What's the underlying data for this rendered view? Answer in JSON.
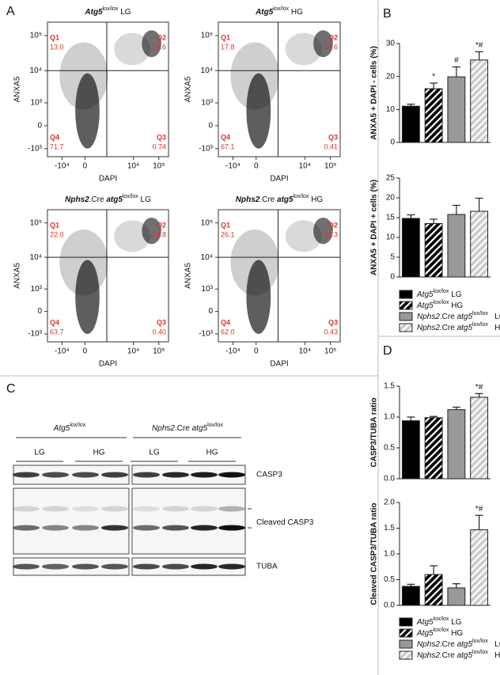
{
  "panel_labels": [
    "A",
    "B",
    "C",
    "D"
  ],
  "flow": {
    "x_label": "DAPI",
    "y_label": "ANXA5",
    "xticks": [
      "-10⁴",
      "0",
      "10⁴",
      "10⁵"
    ],
    "yticks": [
      "10⁵",
      "10⁴",
      "10³",
      "0",
      "-10³"
    ],
    "plots": [
      {
        "title": [
          {
            "text": "Atg5",
            "style": "italic"
          },
          {
            "text": "lox/lox",
            "style": "sup"
          },
          {
            "text": " LG",
            "style": "normal"
          }
        ],
        "quadrants": [
          {
            "name": "Q1",
            "value": "13.0"
          },
          {
            "name": "Q2",
            "value": "14.6"
          },
          {
            "name": "Q3",
            "value": "0.74"
          },
          {
            "name": "Q4",
            "value": "71.7"
          }
        ]
      },
      {
        "title": [
          {
            "text": "Atg5",
            "style": "italic"
          },
          {
            "text": "lox/lox",
            "style": "sup"
          },
          {
            "text": " HG",
            "style": "normal"
          }
        ],
        "quadrants": [
          {
            "name": "Q1",
            "value": "17.8"
          },
          {
            "name": "Q2",
            "value": "14.6"
          },
          {
            "name": "Q3",
            "value": "0.41"
          },
          {
            "name": "Q4",
            "value": "67.1"
          }
        ]
      },
      {
        "title": [
          {
            "text": "Nphs2",
            "style": "italic"
          },
          {
            "text": ".Cre ",
            "style": "normal"
          },
          {
            "text": "atg5",
            "style": "italic"
          },
          {
            "text": "lox/lox",
            "style": "sup"
          },
          {
            "text": " LG",
            "style": "normal"
          }
        ],
        "quadrants": [
          {
            "name": "Q1",
            "value": "22.0"
          },
          {
            "name": "Q2",
            "value": "13.8"
          },
          {
            "name": "Q3",
            "value": "0.40"
          },
          {
            "name": "Q4",
            "value": "63.7"
          }
        ]
      },
      {
        "title": [
          {
            "text": "Nphs2",
            "style": "italic"
          },
          {
            "text": ".Cre ",
            "style": "normal"
          },
          {
            "text": "atg5",
            "style": "italic"
          },
          {
            "text": "lox/lox",
            "style": "sup"
          },
          {
            "text": " HG",
            "style": "normal"
          }
        ],
        "quadrants": [
          {
            "name": "Q1",
            "value": "26.1"
          },
          {
            "name": "Q2",
            "value": "11.3"
          },
          {
            "name": "Q3",
            "value": "0.43"
          },
          {
            "name": "Q4",
            "value": "62.0"
          }
        ]
      }
    ]
  },
  "blot": {
    "groups": [
      [
        {
          "text": "Atg5",
          "style": "italic"
        },
        {
          "text": "lox/lox",
          "style": "sup"
        }
      ],
      [
        {
          "text": "Nphs2",
          "style": "italic"
        },
        {
          "text": ".Cre ",
          "style": "normal"
        },
        {
          "text": "atg5",
          "style": "italic"
        },
        {
          "text": "lox/lox",
          "style": "sup"
        }
      ]
    ],
    "lanes": [
      "LG",
      "HG",
      "LG",
      "HG"
    ],
    "rows": [
      "CASP3",
      "Cleaved CASP3",
      "TUBA"
    ]
  },
  "chart_data": [
    {
      "type": "bar",
      "y_label": "ANXA5 + DAPI - cells (%)",
      "categories": [
        null,
        null,
        null,
        null
      ],
      "values": [
        11,
        16.3,
        19.9,
        25
      ],
      "errors": [
        0.6,
        1.7,
        3,
        2.5
      ],
      "annotations": [
        null,
        "*",
        "#",
        "*#"
      ],
      "colors": [
        "#000000",
        "#000000",
        "#999999",
        "#cccccc"
      ],
      "patterns": [
        "solid",
        "hatch",
        "solid",
        "hatch"
      ],
      "ylim": [
        0,
        30
      ],
      "yticks": [
        0,
        10,
        20,
        30
      ]
    },
    {
      "type": "bar",
      "y_label": "ANXA5 + DAPI + cells (%)",
      "categories": [
        null,
        null,
        null,
        null
      ],
      "values": [
        14.8,
        13.5,
        15.8,
        16.6
      ],
      "errors": [
        0.9,
        1.1,
        2.3,
        3.3
      ],
      "annotations": [
        null,
        null,
        null,
        null
      ],
      "colors": [
        "#000000",
        "#000000",
        "#999999",
        "#cccccc"
      ],
      "patterns": [
        "solid",
        "hatch",
        "solid",
        "hatch"
      ],
      "ylim": [
        0,
        25
      ],
      "yticks": [
        0,
        5,
        10,
        15,
        20,
        25
      ],
      "legend": [
        [
          {
            "text": "Atg5",
            "style": "italic"
          },
          {
            "text": "lox/lox",
            "style": "sup"
          },
          {
            "text": " LG",
            "style": "normal"
          }
        ],
        [
          {
            "text": "Atg5",
            "style": "italic"
          },
          {
            "text": "lox/lox",
            "style": "sup"
          },
          {
            "text": " HG",
            "style": "normal"
          }
        ],
        [
          {
            "text": "Nphs2",
            "style": "italic"
          },
          {
            "text": ".Cre ",
            "style": "normal"
          },
          {
            "text": "atg5",
            "style": "italic"
          },
          {
            "text": "lox/lox",
            "style": "sup"
          },
          {
            "text": "   LG",
            "style": "normal"
          }
        ],
        [
          {
            "text": "Nphs2",
            "style": "italic"
          },
          {
            "text": ".Cre ",
            "style": "normal"
          },
          {
            "text": "atg5",
            "style": "italic"
          },
          {
            "text": "lox/lox",
            "style": "sup"
          },
          {
            "text": "   HG",
            "style": "normal"
          }
        ]
      ]
    },
    {
      "type": "bar",
      "y_label": "CASP3/TUBA ratio",
      "categories": [
        null,
        null,
        null,
        null
      ],
      "values": [
        0.94,
        0.99,
        1.12,
        1.32
      ],
      "errors": [
        0.06,
        0.02,
        0.04,
        0.06
      ],
      "annotations": [
        null,
        null,
        null,
        "*#"
      ],
      "colors": [
        "#000000",
        "#000000",
        "#999999",
        "#cccccc"
      ],
      "patterns": [
        "solid",
        "hatch",
        "solid",
        "hatch"
      ],
      "ylim": [
        0,
        1.5
      ],
      "yticks": [
        {
          "value": 0,
          "label": "0.0"
        },
        0.5,
        {
          "value": 1,
          "label": "1.0"
        },
        1.5
      ]
    },
    {
      "type": "bar",
      "y_label": "Cleaved CASP3/TUBA ratio",
      "categories": [
        null,
        null,
        null,
        null
      ],
      "values": [
        0.37,
        0.6,
        0.34,
        1.47
      ],
      "errors": [
        0.04,
        0.17,
        0.08,
        0.28
      ],
      "annotations": [
        null,
        null,
        null,
        "*#"
      ],
      "colors": [
        "#000000",
        "#000000",
        "#999999",
        "#cccccc"
      ],
      "patterns": [
        "solid",
        "hatch",
        "solid",
        "hatch"
      ],
      "ylim": [
        0,
        2
      ],
      "yticks": [
        {
          "value": 0,
          "label": "0.0"
        },
        0.5,
        {
          "value": 1,
          "label": "1.0"
        },
        1.5,
        {
          "value": 2,
          "label": "2.0"
        }
      ],
      "legend": [
        [
          {
            "text": "Atg5",
            "style": "italic"
          },
          {
            "text": "lox/lox",
            "style": "sup"
          },
          {
            "text": " LG",
            "style": "normal"
          }
        ],
        [
          {
            "text": "Atg5",
            "style": "italic"
          },
          {
            "text": "lox/lox",
            "style": "sup"
          },
          {
            "text": " HG",
            "style": "normal"
          }
        ],
        [
          {
            "text": "Nphs2",
            "style": "italic"
          },
          {
            "text": ".Cre ",
            "style": "normal"
          },
          {
            "text": "atg5",
            "style": "italic"
          },
          {
            "text": "lox/lox",
            "style": "sup"
          },
          {
            "text": "   LG",
            "style": "normal"
          }
        ],
        [
          {
            "text": "Nphs2",
            "style": "italic"
          },
          {
            "text": ".Cre ",
            "style": "normal"
          },
          {
            "text": "atg5",
            "style": "italic"
          },
          {
            "text": "lox/lox",
            "style": "sup"
          },
          {
            "text": "   HG",
            "style": "normal"
          }
        ]
      ]
    }
  ]
}
